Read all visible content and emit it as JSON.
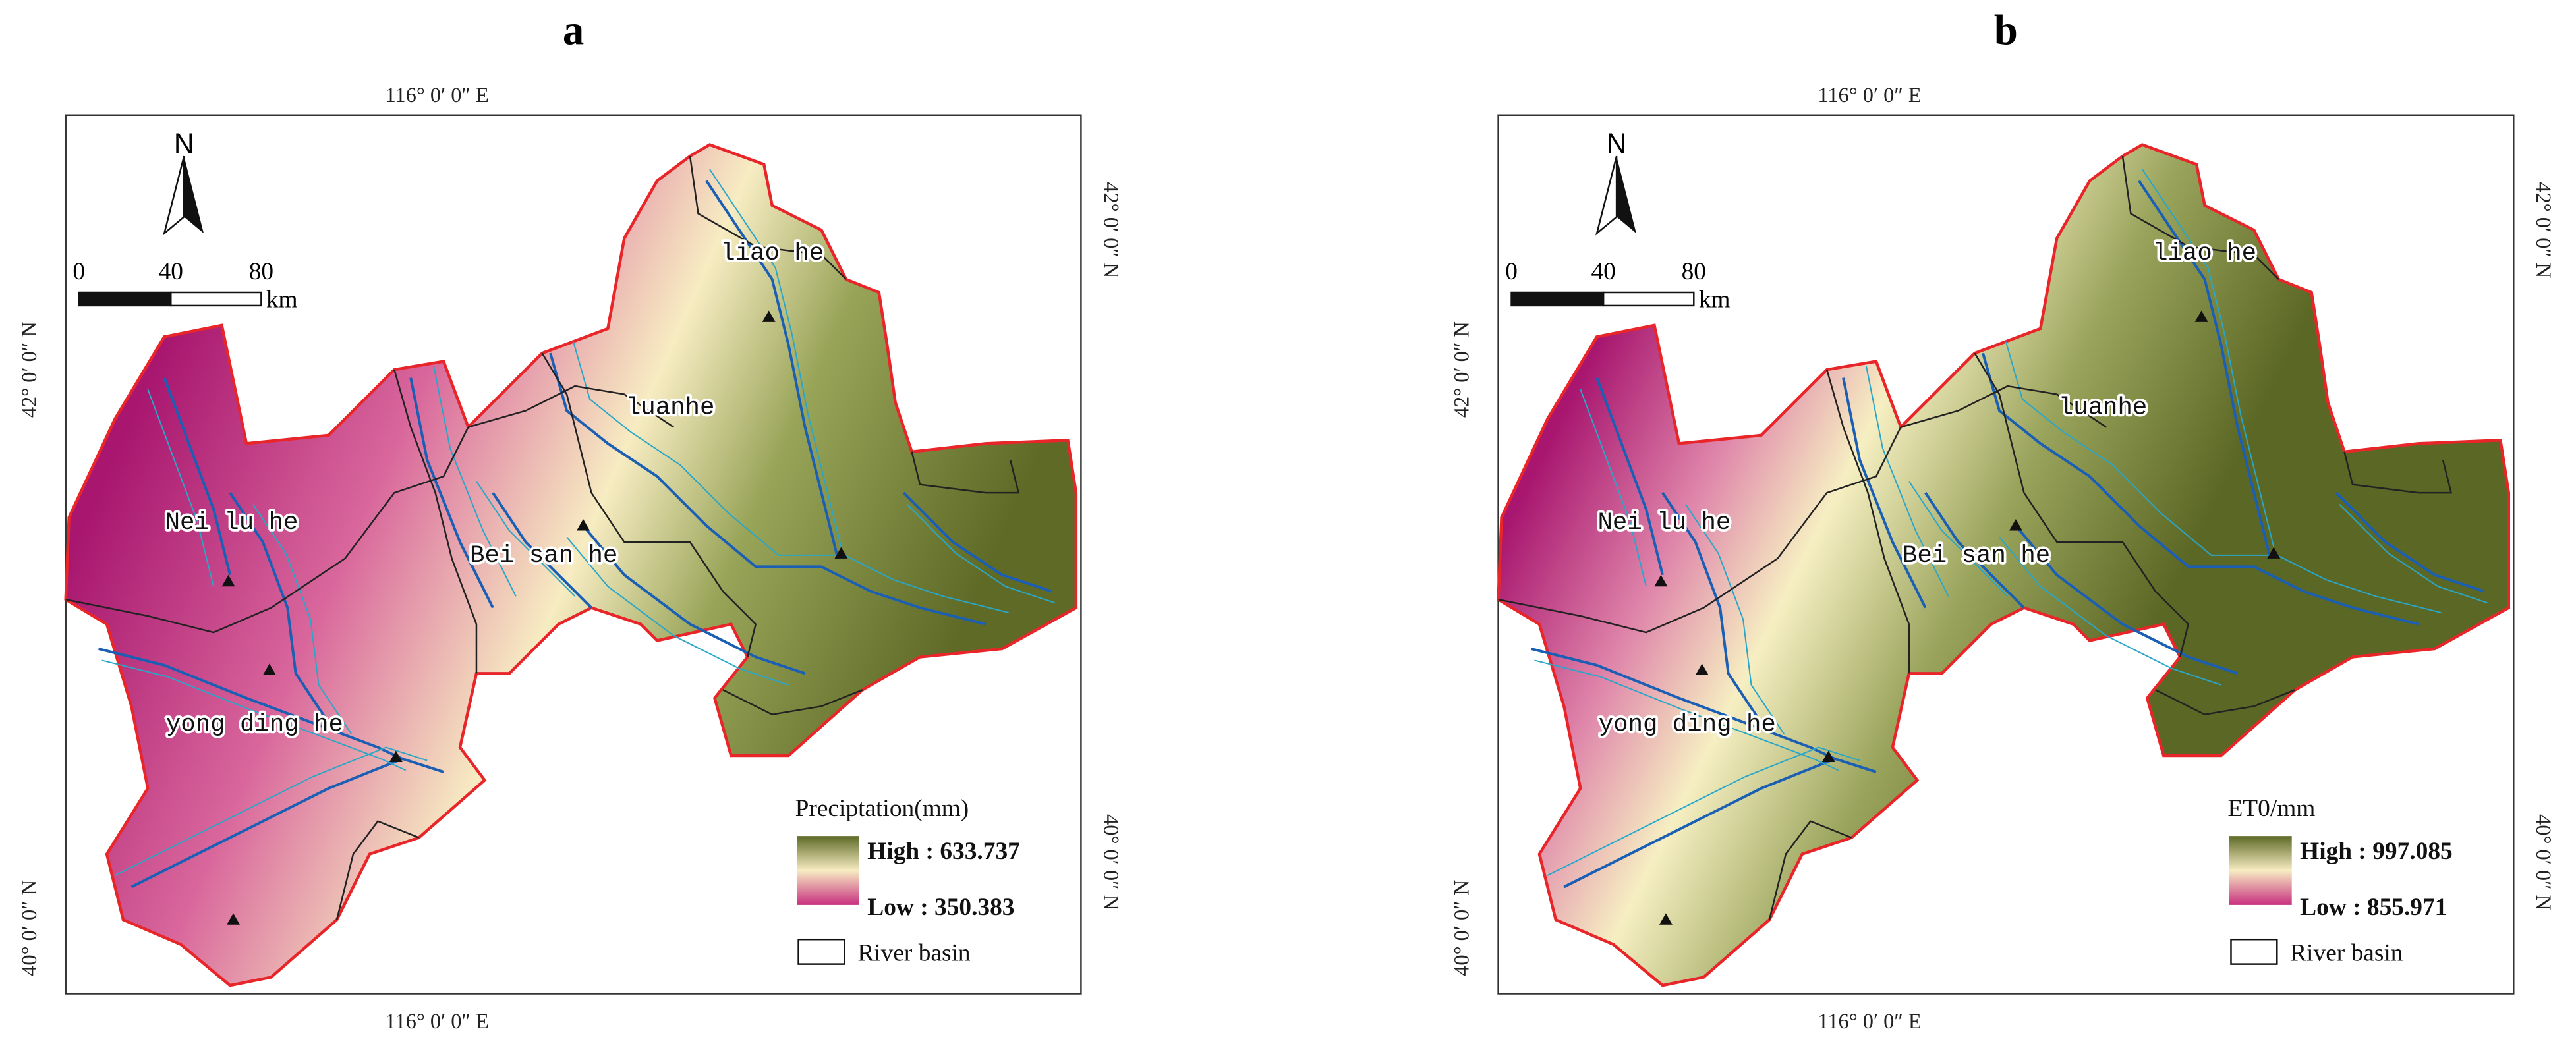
{
  "panels": [
    {
      "label": "a",
      "top_lon": "116° 0′ 0″ E",
      "bottom_lon": "116° 0′ 0″ E",
      "left_lat": [
        "42° 0′ 0″ N",
        "40° 0′ 0″ N"
      ],
      "right_lat": [
        "42° 0′ 0″ N",
        "40° 0′ 0″ N"
      ],
      "north": "N",
      "scale": [
        "0",
        "40",
        "80"
      ],
      "scale_unit": "km",
      "basins": [
        "liao he",
        "luanhe",
        "Nei lu he",
        "Bei san he",
        "yong ding he"
      ],
      "legend": {
        "title": "Preciptation(mm)",
        "high": "High : 633.737",
        "low": "Low : 350.383",
        "basin": "River basin"
      }
    },
    {
      "label": "b",
      "top_lon": "116° 0′ 0″ E",
      "bottom_lon": "116° 0′ 0″ E",
      "left_lat": [
        "42° 0′ 0″ N",
        "40° 0′ 0″ N"
      ],
      "right_lat": [
        "42° 0′ 0″ N",
        "40° 0′ 0″ N"
      ],
      "north": "N",
      "scale": [
        "0",
        "40",
        "80"
      ],
      "scale_unit": "km",
      "basins": [
        "liao he",
        "luanhe",
        "Nei lu he",
        "Bei san he",
        "yong ding he"
      ],
      "legend": {
        "title": "ET0/mm",
        "high": "High : 997.085",
        "low": "Low : 855.971",
        "basin": "River basin"
      }
    }
  ]
}
